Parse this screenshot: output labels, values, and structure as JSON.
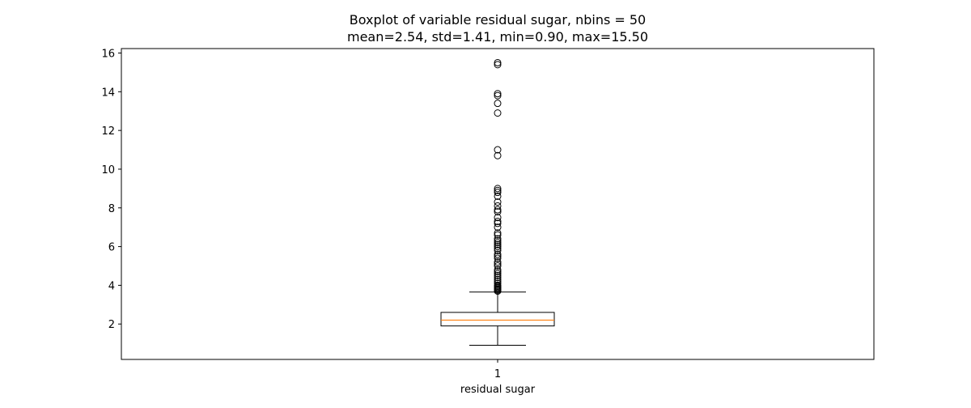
{
  "chart_data": {
    "type": "boxplot",
    "title": "Boxplot of variable residual sugar, nbins = 50",
    "subtitle": "mean=2.54, std=1.41, min=0.90, max=15.50",
    "xlabel": "residual sugar",
    "ylabel": "",
    "x_tick_labels": [
      "1"
    ],
    "y_ticks": [
      2,
      4,
      6,
      8,
      10,
      12,
      14,
      16
    ],
    "ylim": [
      0.17,
      16.23
    ],
    "grid": false,
    "box": {
      "category": "1",
      "whisker_low": 0.9,
      "q1": 1.9,
      "median": 2.2,
      "q3": 2.6,
      "whisker_high": 3.65,
      "outliers": [
        3.7,
        3.75,
        3.8,
        3.85,
        3.9,
        3.95,
        4.0,
        4.1,
        4.2,
        4.3,
        4.4,
        4.5,
        4.6,
        4.7,
        4.8,
        5.0,
        5.1,
        5.2,
        5.4,
        5.5,
        5.6,
        5.8,
        5.9,
        6.0,
        6.1,
        6.2,
        6.3,
        6.4,
        6.6,
        6.7,
        7.0,
        7.2,
        7.3,
        7.5,
        7.8,
        7.9,
        8.1,
        8.3,
        8.6,
        8.8,
        8.9,
        9.0,
        10.7,
        11.0,
        12.9,
        13.4,
        13.8,
        13.9,
        15.4,
        15.5
      ]
    },
    "colors": {
      "median": "#ff7f0e",
      "box": "#000000"
    }
  }
}
